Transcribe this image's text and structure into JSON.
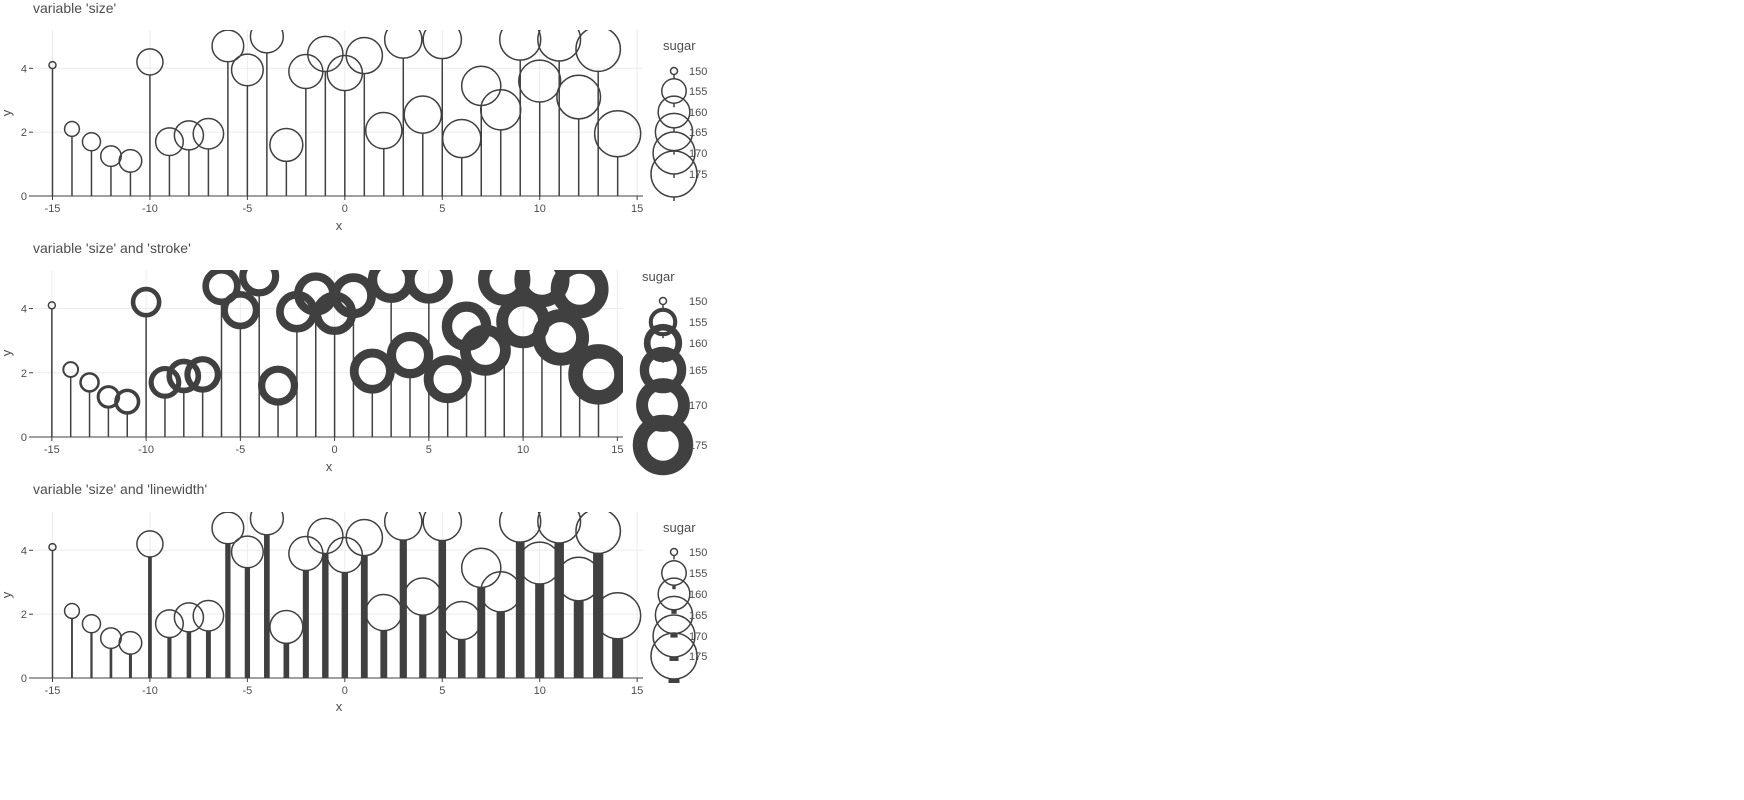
{
  "chart_data": [
    {
      "type": "lollipop",
      "variant": "size",
      "title": "variable 'size'",
      "xlabel": "x",
      "ylabel": "y",
      "xlim": [
        -16,
        15.3
      ],
      "ylim": [
        0,
        5.2
      ],
      "x_ticks": [
        -15,
        -10,
        -5,
        0,
        5,
        10,
        15
      ],
      "y_ticks": [
        0,
        2,
        4
      ],
      "grid": true,
      "legend": {
        "title": "sugar",
        "placement": "right",
        "entries": [
          "150",
          "155",
          "160",
          "165",
          "170",
          "175"
        ]
      },
      "ink_color": "#404040",
      "grid_color": "#ebebeb"
    },
    {
      "type": "lollipop",
      "variant": "size-and-stroke",
      "title": "variable 'size' and 'stroke'",
      "xlabel": "x",
      "ylabel": "y",
      "xlim": [
        -16,
        15.3
      ],
      "ylim": [
        0,
        5.2
      ],
      "x_ticks": [
        -15,
        -10,
        -5,
        0,
        5,
        10,
        15
      ],
      "y_ticks": [
        0,
        2,
        4
      ],
      "grid": true,
      "legend": {
        "title": "sugar",
        "placement": "right",
        "entries": [
          "150",
          "155",
          "160",
          "165",
          "170",
          "175"
        ]
      },
      "ink_color": "#404040",
      "grid_color": "#ebebeb"
    },
    {
      "type": "lollipop",
      "variant": "size-and-linewidth",
      "title": "variable 'size' and 'linewidth'",
      "xlabel": "x",
      "ylabel": "y",
      "xlim": [
        -16,
        15.3
      ],
      "ylim": [
        0,
        5.2
      ],
      "x_ticks": [
        -15,
        -10,
        -5,
        0,
        5,
        10,
        15
      ],
      "y_ticks": [
        0,
        2,
        4
      ],
      "grid": true,
      "legend": {
        "title": "sugar",
        "placement": "right",
        "entries": [
          "150",
          "155",
          "160",
          "165",
          "170",
          "175"
        ]
      },
      "ink_color": "#404040",
      "grid_color": "#ebebeb"
    }
  ],
  "points": [
    {
      "x": -15,
      "y": 4.1,
      "sugar": 150
    },
    {
      "x": -14,
      "y": 2.1,
      "sugar": 151
    },
    {
      "x": -13,
      "y": 1.7,
      "sugar": 152
    },
    {
      "x": -12,
      "y": 1.25,
      "sugar": 153
    },
    {
      "x": -11,
      "y": 1.1,
      "sugar": 154
    },
    {
      "x": -10,
      "y": 4.2,
      "sugar": 156
    },
    {
      "x": -9,
      "y": 1.7,
      "sugar": 157
    },
    {
      "x": -8,
      "y": 1.9,
      "sugar": 158
    },
    {
      "x": -7,
      "y": 1.95,
      "sugar": 159
    },
    {
      "x": -6,
      "y": 4.7,
      "sugar": 160
    },
    {
      "x": -5,
      "y": 3.95,
      "sugar": 160
    },
    {
      "x": -4,
      "y": 5.0,
      "sugar": 161
    },
    {
      "x": -3,
      "y": 1.6,
      "sugar": 161
    },
    {
      "x": -2,
      "y": 3.9,
      "sugar": 162
    },
    {
      "x": -1,
      "y": 4.45,
      "sugar": 163
    },
    {
      "x": 0,
      "y": 3.85,
      "sugar": 163
    },
    {
      "x": 1,
      "y": 4.4,
      "sugar": 164
    },
    {
      "x": 2,
      "y": 2.05,
      "sugar": 164
    },
    {
      "x": 3,
      "y": 4.9,
      "sugar": 165
    },
    {
      "x": 4,
      "y": 2.55,
      "sugar": 165
    },
    {
      "x": 5,
      "y": 4.9,
      "sugar": 166
    },
    {
      "x": 6,
      "y": 1.8,
      "sugar": 166
    },
    {
      "x": 7,
      "y": 3.45,
      "sugar": 167
    },
    {
      "x": 8,
      "y": 2.7,
      "sugar": 168
    },
    {
      "x": 9,
      "y": 4.9,
      "sugar": 169
    },
    {
      "x": 10,
      "y": 3.6,
      "sugar": 170
    },
    {
      "x": 11,
      "y": 4.9,
      "sugar": 171
    },
    {
      "x": 12,
      "y": 3.1,
      "sugar": 172
    },
    {
      "x": 13,
      "y": 4.6,
      "sugar": 173
    },
    {
      "x": 14,
      "y": 1.95,
      "sugar": 175
    }
  ]
}
